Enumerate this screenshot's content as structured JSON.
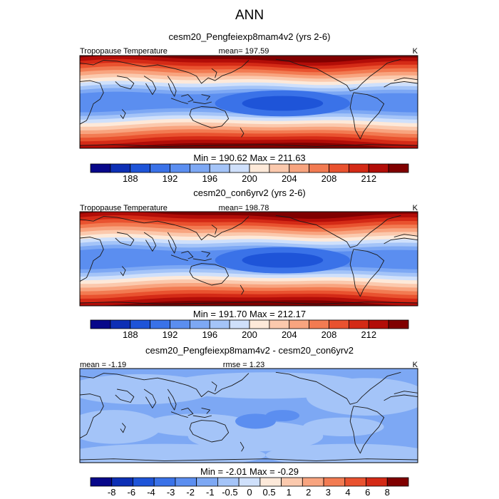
{
  "figure": {
    "title": "ANN"
  },
  "palettes": {
    "abs": [
      "#08088a",
      "#0d2fb5",
      "#1e54d8",
      "#3a72e8",
      "#5b8ef0",
      "#7da8f4",
      "#a4c4f8",
      "#cfe0fb",
      "#fde9d9",
      "#fbc9ad",
      "#f8a47f",
      "#f27b52",
      "#e9522f",
      "#d42a16",
      "#b20d08",
      "#800000"
    ],
    "diff": [
      "#08088a",
      "#0d2fb5",
      "#1e54d8",
      "#3a72e8",
      "#5b8ef0",
      "#7da8f4",
      "#a4c4f8",
      "#cfe0fb",
      "#fde9d9",
      "#fbc9ad",
      "#f8a47f",
      "#f27b52",
      "#e9522f",
      "#d42a16",
      "#800000"
    ],
    "coast": "#1a1a1a",
    "frame": "#000000"
  },
  "chart_data": [
    {
      "type": "heatmap",
      "panel": "exp",
      "title": "cesm20_Pengfeiexp8mam4v2 (yrs 2-6)",
      "left_label": "Tropopause Temperature",
      "center_label": "mean= 197.59",
      "right_label": "K",
      "stats": "Min = 190.62 Max = 211.63",
      "units": "K",
      "colorbar_ticks": [
        "188",
        "192",
        "196",
        "200",
        "204",
        "208",
        "212"
      ],
      "bands_from_pole_to_equator": [
        211.63,
        209,
        207,
        205,
        203,
        201,
        199,
        197,
        195,
        193
      ],
      "warm_pool_minimum": 190.62
    },
    {
      "type": "heatmap",
      "panel": "ctl",
      "title": "cesm20_con6yrv2 (yrs 2-6)",
      "left_label": "Tropopause Temperature",
      "center_label": "mean= 198.78",
      "right_label": "K",
      "stats": "Min = 191.70 Max = 212.17",
      "units": "K",
      "colorbar_ticks": [
        "188",
        "192",
        "196",
        "200",
        "204",
        "208",
        "212"
      ],
      "bands_from_pole_to_equator": [
        212.17,
        210,
        208,
        206,
        204,
        202,
        200,
        198,
        196,
        194
      ],
      "warm_pool_minimum": 191.7
    },
    {
      "type": "heatmap",
      "panel": "diff",
      "title": "cesm20_Pengfeiexp8mam4v2 - cesm20_con6yrv2",
      "left_label": "mean =  -1.19",
      "center_label": "rmse =   1.23",
      "right_label": "K",
      "stats": "Min =  -2.01 Max =  -0.29",
      "units": "K",
      "colorbar_ticks": [
        "-8",
        "-6",
        "-4",
        "-3",
        "-2",
        "-1",
        "-0.5",
        "0",
        "0.5",
        "1",
        "2",
        "3",
        "4",
        "6",
        "8"
      ]
    }
  ]
}
